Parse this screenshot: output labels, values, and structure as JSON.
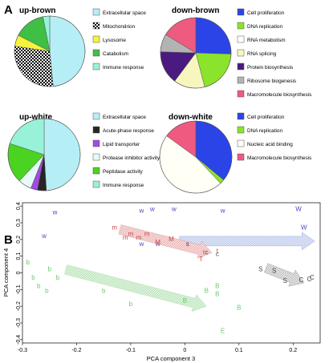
{
  "panel_labels": {
    "a": "A",
    "b": "B"
  },
  "colors": {
    "cell_proliferation": "#2a44e8",
    "dna_replication": "#8be32c",
    "rna_metabolism": "#ffffff",
    "rna_splicing": "#f7f6bf",
    "protein_biosynthesis": "#4a1a80",
    "ribosome_biogenesis": "#b3b3b3",
    "macromolecule_biosynthesis": "#ee5a80",
    "extracellular_space": "#b6eef6",
    "mitochondrion": "checkerboard",
    "lysosome": "#f7f33c",
    "catabolism": "#3fbf44",
    "immune_response": "#98f2d8",
    "acute_phase_response": "#262626",
    "lipid_transporter": "#a34ae6",
    "protease_inhibitor_activity": "#e6fbf7",
    "peptidase_activity": "#4ad320",
    "nucleic_acid_binding": "#fffff5",
    "white_group": "#4a4ac8",
    "brown_group": "#c84a4a",
    "green_group": "#6cc86c",
    "gray_group": "#444444"
  },
  "chart_data": [
    {
      "type": "pie",
      "title": "up-brown",
      "categories": [
        "Extracellular space",
        "Mitochondrion",
        "Lysosome",
        "Catabolism",
        "Immune response"
      ],
      "values": [
        47,
        28,
        5,
        14,
        3
      ]
    },
    {
      "type": "pie",
      "title": "down-brown",
      "categories": [
        "Cell proliferation",
        "DNA replication",
        "RNA metabolism",
        "RNA splicing",
        "Protein biosynthesis",
        "Ribosome biogenesis",
        "Macromolecule biosynthesis"
      ],
      "values": [
        25,
        20,
        0,
        14,
        15,
        8,
        16
      ]
    },
    {
      "type": "pie",
      "title": "up-white",
      "categories": [
        "Extracellular space",
        "Acute-phase response",
        "Lipid transporter",
        "Protease inhibitor activity",
        "Peptidase activity",
        "Immune response"
      ],
      "values": [
        49,
        4,
        3,
        6,
        18,
        20
      ]
    },
    {
      "type": "pie",
      "title": "down-white",
      "categories": [
        "Cell proliferation",
        "DNA replication",
        "Nucleic acid binding",
        "Macromolecule biosynthesis"
      ],
      "values": [
        36,
        2,
        47,
        15
      ]
    },
    {
      "type": "scatter",
      "xlabel": "PCA component 3",
      "ylabel": "PCA component 4",
      "xlim": [
        -0.3,
        0.25
      ],
      "ylim": [
        -0.42,
        0.42
      ],
      "xticks": [
        "-0.3",
        "-0.2",
        "-0.1",
        "0",
        "0.1",
        "0.2"
      ],
      "yticks": [
        "-0.4",
        "-0.3",
        "-0.2",
        "-0.1",
        "0",
        "0.1",
        "0.2",
        "0.3",
        "0.4"
      ],
      "series": [
        {
          "group": "white",
          "points": [
            {
              "x": -0.26,
              "y": 0.21,
              "label": "w"
            },
            {
              "x": -0.24,
              "y": 0.35,
              "label": "w"
            },
            {
              "x": -0.08,
              "y": 0.36,
              "label": "w"
            },
            {
              "x": -0.06,
              "y": 0.37,
              "label": "w"
            },
            {
              "x": -0.02,
              "y": 0.37,
              "label": "w"
            },
            {
              "x": 0.07,
              "y": 0.36,
              "label": "w"
            },
            {
              "x": 0.21,
              "y": 0.37,
              "label": "W"
            },
            {
              "x": 0.22,
              "y": 0.26,
              "label": "W"
            },
            {
              "x": -0.08,
              "y": 0.16,
              "label": "w"
            },
            {
              "x": -0.05,
              "y": 0.16,
              "label": "w"
            }
          ]
        },
        {
          "group": "brown",
          "points": [
            {
              "x": -0.13,
              "y": 0.26,
              "label": "m"
            },
            {
              "x": -0.11,
              "y": 0.2,
              "label": "m"
            },
            {
              "x": -0.085,
              "y": 0.2,
              "label": "m"
            },
            {
              "x": -0.07,
              "y": 0.22,
              "label": "m"
            },
            {
              "x": -0.1,
              "y": 0.22,
              "label": "m"
            },
            {
              "x": -0.05,
              "y": 0.17,
              "label": "M"
            },
            {
              "x": -0.025,
              "y": 0.19,
              "label": "M"
            },
            {
              "x": 0.03,
              "y": 0.07,
              "label": "T"
            },
            {
              "x": 0.035,
              "y": 0.11,
              "label": "t"
            },
            {
              "x": 0.06,
              "y": 0.12,
              "label": "t"
            }
          ]
        },
        {
          "group": "gray",
          "points": [
            {
              "x": 0.005,
              "y": 0.16,
              "label": "s"
            },
            {
              "x": 0.04,
              "y": 0.11,
              "label": "c"
            },
            {
              "x": 0.06,
              "y": 0.1,
              "label": "c"
            },
            {
              "x": 0.14,
              "y": 0.01,
              "label": "S"
            },
            {
              "x": 0.165,
              "y": 0.0,
              "label": "S"
            },
            {
              "x": 0.185,
              "y": -0.06,
              "label": "S"
            },
            {
              "x": 0.215,
              "y": -0.055,
              "label": "C"
            },
            {
              "x": 0.23,
              "y": -0.05,
              "label": "C"
            },
            {
              "x": 0.235,
              "y": -0.04,
              "label": "C"
            }
          ]
        },
        {
          "group": "green",
          "points": [
            {
              "x": -0.29,
              "y": 0.05,
              "label": "b"
            },
            {
              "x": -0.28,
              "y": -0.04,
              "label": "b"
            },
            {
              "x": -0.27,
              "y": -0.09,
              "label": "b"
            },
            {
              "x": -0.255,
              "y": -0.12,
              "label": "b"
            },
            {
              "x": -0.235,
              "y": -0.04,
              "label": "b"
            },
            {
              "x": -0.25,
              "y": 0.01,
              "label": "b"
            },
            {
              "x": -0.15,
              "y": -0.12,
              "label": "b"
            },
            {
              "x": -0.1,
              "y": -0.2,
              "label": "b"
            },
            {
              "x": 0.04,
              "y": -0.12,
              "label": "B"
            },
            {
              "x": 0.06,
              "y": -0.14,
              "label": "B"
            },
            {
              "x": 0.06,
              "y": -0.09,
              "label": "B"
            },
            {
              "x": 0.0,
              "y": -0.18,
              "label": "B"
            },
            {
              "x": 0.1,
              "y": -0.22,
              "label": "B"
            },
            {
              "x": 0.07,
              "y": -0.36,
              "label": "E"
            }
          ]
        }
      ],
      "arrows": [
        {
          "group": "white",
          "from": [
            -0.01,
            0.19
          ],
          "to": [
            0.24,
            0.19
          ]
        },
        {
          "group": "brown",
          "from": [
            -0.12,
            0.26
          ],
          "to": [
            0.05,
            0.12
          ]
        },
        {
          "group": "gray",
          "from": [
            0.15,
            0.03
          ],
          "to": [
            0.22,
            -0.06
          ]
        },
        {
          "group": "green",
          "from": [
            -0.22,
            0.02
          ],
          "to": [
            0.04,
            -0.2
          ]
        }
      ]
    }
  ]
}
